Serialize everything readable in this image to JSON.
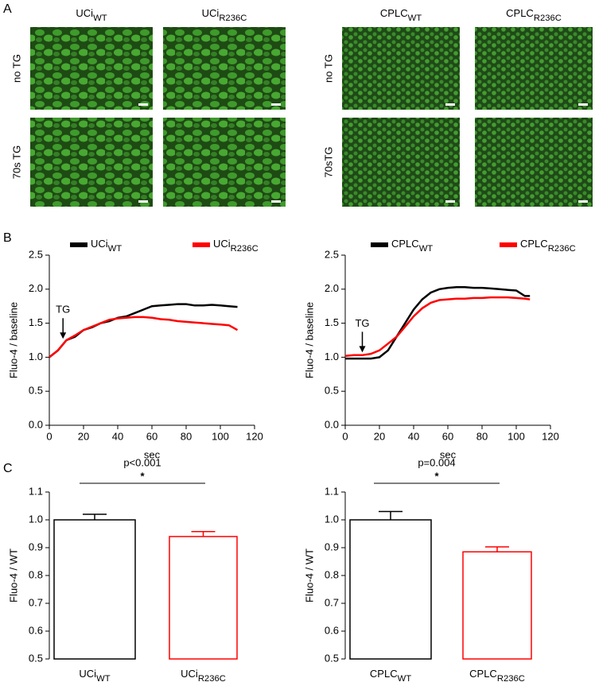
{
  "panels": {
    "a": "A",
    "b": "B",
    "c": "C"
  },
  "micrographs": [
    {
      "columns": [
        {
          "name": "UCi",
          "sub": "WT"
        },
        {
          "name": "UCi",
          "sub": "R236C"
        }
      ],
      "rows": [
        "no TG",
        "70s TG"
      ]
    },
    {
      "columns": [
        {
          "name": "CPLC",
          "sub": "WT"
        },
        {
          "name": "CPLC",
          "sub": "R236C"
        }
      ],
      "rows": [
        "no TG",
        "70sTG"
      ]
    }
  ],
  "chart_data": [
    {
      "type": "line",
      "xlabel": "sec",
      "ylabel": "Fluo-4 / baseline",
      "legend": "top",
      "x": [
        0,
        5,
        10,
        15,
        20,
        25,
        30,
        35,
        40,
        45,
        50,
        55,
        60,
        65,
        70,
        75,
        80,
        85,
        90,
        95,
        100,
        105,
        110
      ],
      "series": [
        {
          "name": "UCi",
          "name_sub": "WT",
          "color": "#000000",
          "values": [
            1.0,
            1.1,
            1.25,
            1.3,
            1.4,
            1.44,
            1.5,
            1.53,
            1.58,
            1.6,
            1.65,
            1.7,
            1.75,
            1.76,
            1.77,
            1.78,
            1.78,
            1.76,
            1.76,
            1.77,
            1.76,
            1.75,
            1.74
          ]
        },
        {
          "name": "UCi",
          "name_sub": "R236C",
          "color": "#ff0000",
          "values": [
            1.0,
            1.1,
            1.25,
            1.32,
            1.4,
            1.45,
            1.5,
            1.55,
            1.57,
            1.58,
            1.59,
            1.59,
            1.58,
            1.56,
            1.55,
            1.53,
            1.52,
            1.51,
            1.5,
            1.49,
            1.48,
            1.47,
            1.4
          ]
        }
      ],
      "annotations": [
        {
          "text": "TG",
          "x": 8,
          "y": 1.27
        }
      ],
      "xlim": [
        0,
        120
      ],
      "xticks": [
        0,
        20,
        40,
        60,
        80,
        100,
        120
      ],
      "ylim": [
        0,
        2.5
      ],
      "yticks": [
        {
          "value": 0,
          "label": "0.0"
        },
        0.5,
        {
          "value": 1,
          "label": "1.0"
        },
        1.5,
        {
          "value": 2,
          "label": "2.0"
        },
        2.5
      ]
    },
    {
      "type": "line",
      "xlabel": "sec",
      "ylabel": "Fluo-4 / baseline",
      "legend": "top",
      "x": [
        0,
        5,
        10,
        15,
        20,
        25,
        30,
        35,
        40,
        45,
        50,
        55,
        60,
        65,
        70,
        75,
        80,
        85,
        90,
        95,
        100,
        105,
        108
      ],
      "series": [
        {
          "name": "CPLC",
          "name_sub": "WT",
          "color": "#000000",
          "values": [
            0.98,
            0.98,
            0.98,
            0.98,
            1.0,
            1.1,
            1.3,
            1.5,
            1.7,
            1.85,
            1.95,
            2.0,
            2.02,
            2.03,
            2.03,
            2.02,
            2.02,
            2.01,
            2.0,
            1.99,
            1.98,
            1.9,
            1.9
          ]
        },
        {
          "name": "CPLC",
          "name_sub": "R236C",
          "color": "#ff0000",
          "values": [
            1.02,
            1.03,
            1.03,
            1.05,
            1.1,
            1.2,
            1.3,
            1.45,
            1.6,
            1.72,
            1.8,
            1.84,
            1.85,
            1.86,
            1.86,
            1.87,
            1.87,
            1.88,
            1.88,
            1.88,
            1.87,
            1.86,
            1.85
          ]
        }
      ],
      "annotations": [
        {
          "text": "TG",
          "x": 10,
          "y": 1.07
        }
      ],
      "xlim": [
        0,
        120
      ],
      "xticks": [
        0,
        20,
        40,
        60,
        80,
        100,
        120
      ],
      "ylim": [
        0,
        2.5
      ],
      "yticks": [
        {
          "value": 0,
          "label": "0.0"
        },
        0.5,
        {
          "value": 1,
          "label": "1.0"
        },
        1.5,
        {
          "value": 2,
          "label": "2.0"
        },
        2.5
      ]
    },
    {
      "type": "bar",
      "ylabel": "Fluo-4 / WT",
      "categories": [
        "UCi",
        "UCi"
      ],
      "category_subs": [
        "WT",
        "R236C"
      ],
      "values": [
        1.0,
        0.94
      ],
      "errors": [
        0.02,
        0.018
      ],
      "colors": [
        "#000000",
        "#ff0000"
      ],
      "significance": {
        "label": "p<0.001",
        "marker": "*"
      },
      "ylim": [
        0.5,
        1.1
      ],
      "yticks": [
        0.5,
        0.6,
        0.7,
        0.8,
        0.9,
        {
          "value": 1,
          "label": "1.0"
        },
        1.1
      ]
    },
    {
      "type": "bar",
      "ylabel": "Fluo-4 / WT",
      "categories": [
        "CPLC",
        "CPLC"
      ],
      "category_subs": [
        "WT",
        "R236C"
      ],
      "values": [
        1.0,
        0.885
      ],
      "errors": [
        0.03,
        0.018
      ],
      "colors": [
        "#000000",
        "#ff0000"
      ],
      "significance": {
        "label": "p=0.004",
        "marker": "*"
      },
      "ylim": [
        0.5,
        1.1
      ],
      "yticks": [
        0.5,
        0.6,
        0.7,
        0.8,
        0.9,
        {
          "value": 1,
          "label": "1.0"
        },
        1.1
      ]
    }
  ]
}
